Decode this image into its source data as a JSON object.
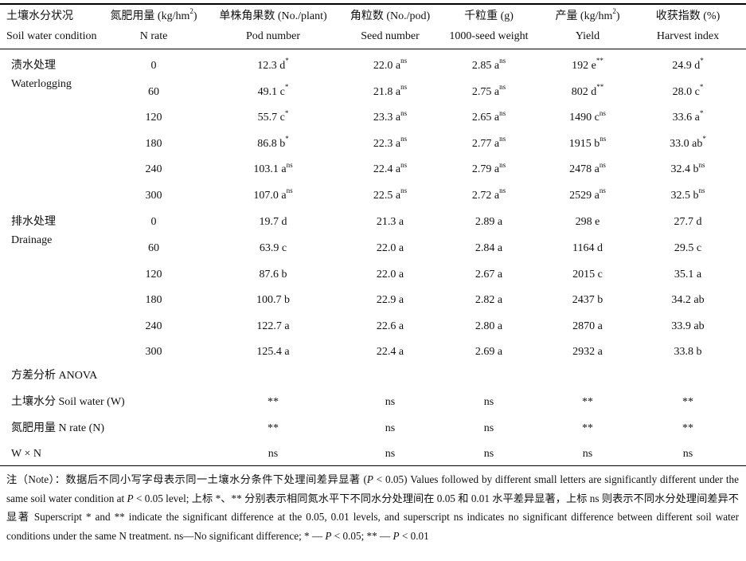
{
  "header": [
    {
      "cn": "土壤水分状况",
      "en": "Soil water condition"
    },
    {
      "cn": "氮肥用量 (kg/hm",
      "cn_sup": "2",
      "cn_tail": ")",
      "en": "N rate"
    },
    {
      "cn": "单株角果数 (No./plant)",
      "en": "Pod number"
    },
    {
      "cn": "角粒数 (No./pod)",
      "en": "Seed number"
    },
    {
      "cn": "千粒重 (g)",
      "en": "1000-seed weight"
    },
    {
      "cn": "产量 (kg/hm",
      "cn_sup": "2",
      "cn_tail": ")",
      "en": "Yield"
    },
    {
      "cn": "收获指数 (%)",
      "en": "Harvest index"
    }
  ],
  "groups": [
    {
      "label_cn": "渍水处理",
      "label_en": "Waterlogging",
      "rows": [
        {
          "n": "0",
          "pod": "12.3 d",
          "pod_s": "*",
          "seed": "22.0 a",
          "seed_s": "ns",
          "tsw": "2.85 a",
          "tsw_s": "ns",
          "yield": "192 e",
          "yield_s": "**",
          "hi": "24.9 d",
          "hi_s": "*"
        },
        {
          "n": "60",
          "pod": "49.1 c",
          "pod_s": "*",
          "seed": "21.8 a",
          "seed_s": "ns",
          "tsw": "2.75 a",
          "tsw_s": "ns",
          "yield": "802 d",
          "yield_s": "**",
          "hi": "28.0 c",
          "hi_s": "*"
        },
        {
          "n": "120",
          "pod": "55.7 c",
          "pod_s": "*",
          "seed": "23.3 a",
          "seed_s": "ns",
          "tsw": "2.65 a",
          "tsw_s": "ns",
          "yield": "1490 c",
          "yield_s": "ns",
          "hi": "33.6 a",
          "hi_s": "*"
        },
        {
          "n": "180",
          "pod": "86.8 b",
          "pod_s": "*",
          "seed": "22.3 a",
          "seed_s": "ns",
          "tsw": "2.77 a",
          "tsw_s": "ns",
          "yield": "1915 b",
          "yield_s": "ns",
          "hi": "33.0 ab",
          "hi_s": "*"
        },
        {
          "n": "240",
          "pod": "103.1 a",
          "pod_s": "ns",
          "seed": "22.4 a",
          "seed_s": "ns",
          "tsw": "2.79 a",
          "tsw_s": "ns",
          "yield": "2478 a",
          "yield_s": "ns",
          "hi": "32.4 b",
          "hi_s": "ns"
        },
        {
          "n": "300",
          "pod": "107.0 a",
          "pod_s": "ns",
          "seed": "22.5 a",
          "seed_s": "ns",
          "tsw": "2.72 a",
          "tsw_s": "ns",
          "yield": "2529 a",
          "yield_s": "ns",
          "hi": "32.5 b",
          "hi_s": "ns"
        }
      ]
    },
    {
      "label_cn": "排水处理",
      "label_en": "Drainage",
      "rows": [
        {
          "n": "0",
          "pod": "19.7 d",
          "pod_s": "",
          "seed": "21.3 a",
          "seed_s": "",
          "tsw": "2.89 a",
          "tsw_s": "",
          "yield": "298 e",
          "yield_s": "",
          "hi": "27.7 d",
          "hi_s": ""
        },
        {
          "n": "60",
          "pod": "63.9 c",
          "pod_s": "",
          "seed": "22.0 a",
          "seed_s": "",
          "tsw": "2.84 a",
          "tsw_s": "",
          "yield": "1164 d",
          "yield_s": "",
          "hi": "29.5 c",
          "hi_s": ""
        },
        {
          "n": "120",
          "pod": "87.6 b",
          "pod_s": "",
          "seed": "22.0 a",
          "seed_s": "",
          "tsw": "2.67 a",
          "tsw_s": "",
          "yield": "2015 c",
          "yield_s": "",
          "hi": "35.1 a",
          "hi_s": ""
        },
        {
          "n": "180",
          "pod": "100.7 b",
          "pod_s": "",
          "seed": "22.9 a",
          "seed_s": "",
          "tsw": "2.82 a",
          "tsw_s": "",
          "yield": "2437 b",
          "yield_s": "",
          "hi": "34.2 ab",
          "hi_s": ""
        },
        {
          "n": "240",
          "pod": "122.7 a",
          "pod_s": "",
          "seed": "22.6 a",
          "seed_s": "",
          "tsw": "2.80 a",
          "tsw_s": "",
          "yield": "2870 a",
          "yield_s": "",
          "hi": "33.9 ab",
          "hi_s": ""
        },
        {
          "n": "300",
          "pod": "125.4 a",
          "pod_s": "",
          "seed": "22.4 a",
          "seed_s": "",
          "tsw": "2.69 a",
          "tsw_s": "",
          "yield": "2932 a",
          "yield_s": "",
          "hi": "33.8 b",
          "hi_s": ""
        }
      ]
    }
  ],
  "anova": {
    "title": "方差分析 ANOVA",
    "rows": [
      {
        "label": "土壤水分 Soil water (W)",
        "pod": "**",
        "seed": "ns",
        "tsw": "ns",
        "yield": "**",
        "hi": "**"
      },
      {
        "label": "氮肥用量 N rate (N)",
        "pod": "**",
        "seed": "ns",
        "tsw": "ns",
        "yield": "**",
        "hi": "**"
      },
      {
        "label": "W × N",
        "pod": "ns",
        "seed": "ns",
        "tsw": "ns",
        "yield": "ns",
        "hi": "ns"
      }
    ]
  },
  "note": {
    "p1": "注（Note）：数据后不同小写字母表示同一土壤水分条件下处理间差异显著 (",
    "p_sym": "P",
    "p2": " < 0.05) Values followed by different small letters are significantly different under the same soil water condition at ",
    "p3": " < 0.05 level; 上标 *、** 分别表示相同氮水平下不同水分处理间在 0.05 和 0.01 水平差异显著，上标 ns 则表示不同水分处理间差异不显著 Superscript * and ** indicate the significant difference at the 0.05, 0.01 levels, and superscript ns indicates no significant difference between different soil water conditions under the same N treatment. ns—No significant difference; * — ",
    "p4": " < 0.05; ** — ",
    "p5": " < 0.01"
  }
}
